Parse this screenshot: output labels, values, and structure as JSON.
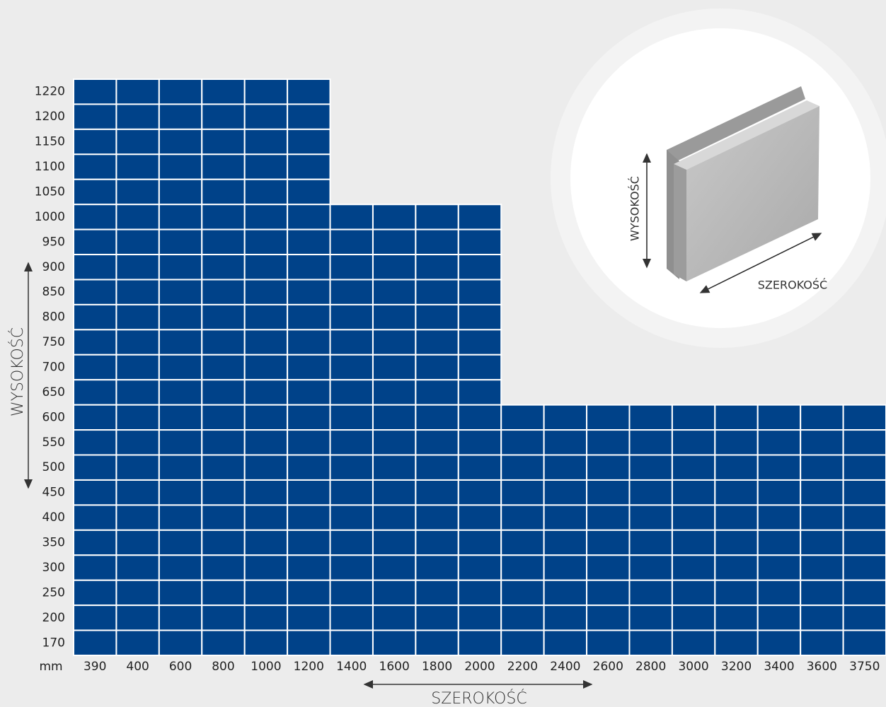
{
  "unit": "mm",
  "height_axis_label": "WYSOKOŚĆ",
  "width_axis_label": "SZEROKOŚĆ",
  "heights": [
    1220,
    1200,
    1150,
    1100,
    1050,
    1000,
    950,
    900,
    850,
    800,
    750,
    700,
    650,
    600,
    550,
    500,
    450,
    400,
    350,
    300,
    250,
    200,
    170
  ],
  "widths": [
    390,
    400,
    600,
    800,
    1000,
    1200,
    1400,
    1600,
    1800,
    2000,
    2200,
    2400,
    2600,
    2800,
    3000,
    3200,
    3400,
    3600,
    3750
  ],
  "max_height_by_width": [
    1220,
    1220,
    1220,
    1220,
    1220,
    1220,
    1000,
    1000,
    1000,
    1000,
    600,
    600,
    600,
    600,
    600,
    600,
    600,
    600,
    600
  ],
  "inset": {
    "height_label": "WYSOKOŚĆ",
    "width_label": "SZEROKOŚĆ"
  }
}
